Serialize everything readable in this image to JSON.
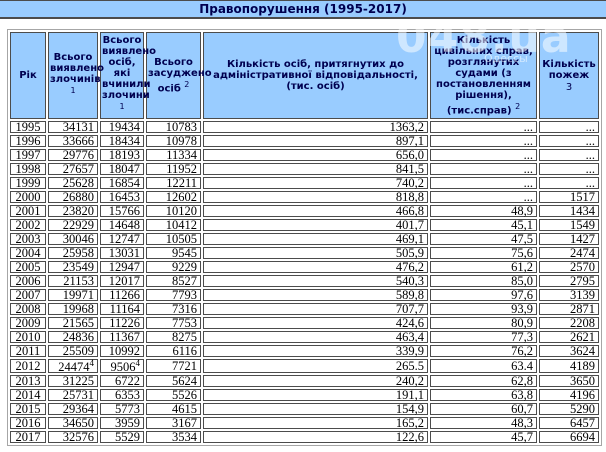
{
  "title": "Правопорушення (1995-2017)",
  "watermark": {
    "big": "048.ua",
    "small": "Одессы"
  },
  "colors": {
    "band_bg": "#99CCFF",
    "header_bg": "#99CCFF",
    "header_text": "#000050",
    "cell_border": "#4c4c4c",
    "outer_border": "#a6a6a6"
  },
  "chart_data": {
    "type": "table",
    "title": "Правопорушення (1995-2017)",
    "columns": [
      {
        "label": "Рік",
        "sup": ""
      },
      {
        "label": "Всього виявлено злочинів",
        "sup": "1"
      },
      {
        "label": "Всього виявлено осіб, які вчинили злочини",
        "sup": "1"
      },
      {
        "label": "Всього засуджено осіб",
        "sup": "2"
      },
      {
        "label": "Кількість осіб, притягнутих до адміністративної відповідальності, (тис. осіб)",
        "sup": ""
      },
      {
        "label": "Кількість цивільних справ, розглянутих судами (з постановленням рішення), (тис.справ)",
        "sup": "2"
      },
      {
        "label": "Кількість пожеж",
        "sup": "3"
      }
    ],
    "rows": [
      [
        "1995",
        "34131",
        "19434",
        "10783",
        "1363,2",
        "...",
        "..."
      ],
      [
        "1996",
        "33666",
        "18434",
        "10978",
        "897,1",
        "...",
        "..."
      ],
      [
        "1997",
        "29776",
        "18193",
        "11334",
        "656,0",
        "...",
        "..."
      ],
      [
        "1998",
        "27657",
        "18047",
        "11952",
        "841,5",
        "...",
        "..."
      ],
      [
        "1999",
        "25628",
        "16854",
        "12211",
        "740,2",
        "...",
        "..."
      ],
      [
        "2000",
        "26880",
        "16453",
        "12602",
        "818,8",
        "...",
        "1517"
      ],
      [
        "2001",
        "23820",
        "15766",
        "10120",
        "466,8",
        "48,9",
        "1434"
      ],
      [
        "2002",
        "22929",
        "14648",
        "10412",
        "401,7",
        "45,1",
        "1549"
      ],
      [
        "2003",
        "30046",
        "12747",
        "10505",
        "469,1",
        "47,5",
        "1427"
      ],
      [
        "2004",
        "25958",
        "13031",
        "9545",
        "505,9",
        "75,6",
        "2474"
      ],
      [
        "2005",
        "23549",
        "12947",
        "9229",
        "476,2",
        "61,2",
        "2570"
      ],
      [
        "2006",
        "21153",
        "12017",
        "8527",
        "540,3",
        "85,0",
        "2795"
      ],
      [
        "2007",
        "19971",
        "11266",
        "7793",
        "589,8",
        "97,6",
        "3139"
      ],
      [
        "2008",
        "19968",
        "11164",
        "7316",
        "707,7",
        "93,9",
        "2871"
      ],
      [
        "2009",
        "21565",
        "11226",
        "7753",
        "424,6",
        "80,9",
        "2208"
      ],
      [
        "2010",
        "24836",
        "11367",
        "8275",
        "463,4",
        "77,3",
        "2621"
      ],
      [
        "2011",
        "25509",
        "10992",
        "6116",
        "339,9",
        "76,2",
        "3624"
      ],
      [
        "2012",
        {
          "v": "24474",
          "sup": "4"
        },
        {
          "v": "9506",
          "sup": "4"
        },
        "7721",
        "265.5",
        "63.4",
        "4189"
      ],
      [
        "2013",
        "31225",
        "6722",
        "5624",
        "240,2",
        "62,8",
        "3650"
      ],
      [
        "2014",
        "25731",
        "6353",
        "5526",
        "191,1",
        "63,8",
        "4196"
      ],
      [
        "2015",
        "29364",
        "5773",
        "4615",
        "154,9",
        "60,7",
        "5290"
      ],
      [
        "2016",
        "34650",
        "3959",
        "3167",
        "165,2",
        "48,3",
        "6457"
      ],
      [
        "2017",
        "32576",
        "5529",
        "3534",
        "122,6",
        "45,7",
        "6694"
      ]
    ]
  }
}
